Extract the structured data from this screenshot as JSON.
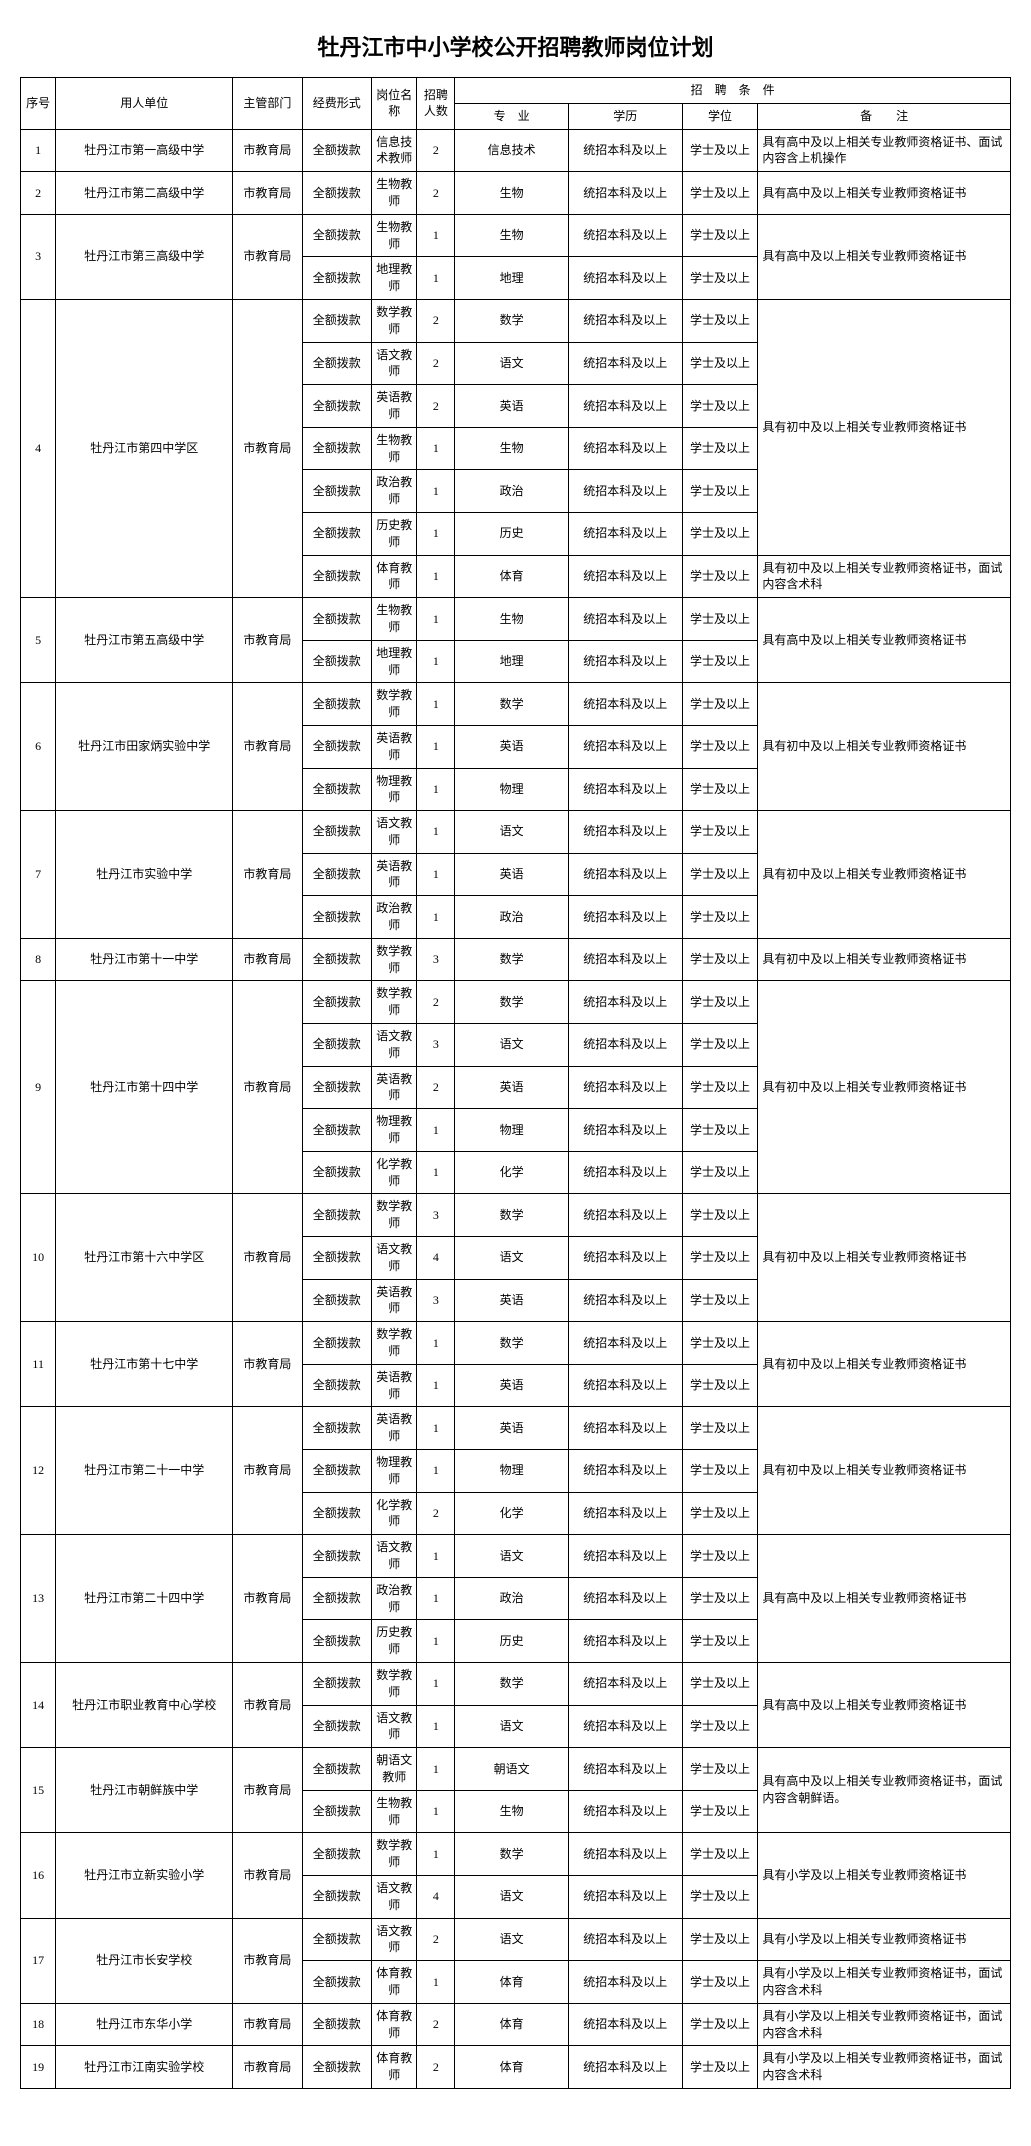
{
  "title": "牡丹江市中小学校公开招聘教师岗位计划",
  "headers": {
    "seq": "序号",
    "unit": "用人单位",
    "dept": "主管部门",
    "fund": "经费形式",
    "pos": "岗位名称",
    "num": "招聘人数",
    "cond": "招　聘　条　件",
    "major": "专　业",
    "edu": "学历",
    "deg": "学位",
    "note": "备　　注"
  },
  "common": {
    "dept": "市教育局",
    "fund": "全额拨款",
    "edu": "统招本科及以上",
    "deg": "学士及以上"
  },
  "notes": {
    "hs": "具有高中及以上相关专业教师资格证书",
    "hs_comp": "具有高中及以上相关专业教师资格证书、面试内容含上机操作",
    "ms": "具有初中及以上相关专业教师资格证书",
    "ms_pe": "具有初中及以上相关专业教师资格证书，面试内容含术科",
    "hs_kor": "具有高中及以上相关专业教师资格证书，面试内容含朝鲜语。",
    "ps": "具有小学及以上相关专业教师资格证书",
    "ps_pe": "具有小学及以上相关专业教师资格证书，面试内容含术科"
  },
  "schools": [
    {
      "seq": "1",
      "unit": "牡丹江市第一高级中学",
      "rows": [
        {
          "pos": "信息技术教师",
          "num": "2",
          "major": "信息技术"
        }
      ],
      "note": "hs_comp"
    },
    {
      "seq": "2",
      "unit": "牡丹江市第二高级中学",
      "rows": [
        {
          "pos": "生物教师",
          "num": "2",
          "major": "生物"
        }
      ],
      "note": "hs"
    },
    {
      "seq": "3",
      "unit": "牡丹江市第三高级中学",
      "rows": [
        {
          "pos": "生物教师",
          "num": "1",
          "major": "生物"
        },
        {
          "pos": "地理教师",
          "num": "1",
          "major": "地理"
        }
      ],
      "note": "hs"
    },
    {
      "seq": "4",
      "unit": "牡丹江市第四中学区",
      "rows": [
        {
          "pos": "数学教师",
          "num": "2",
          "major": "数学"
        },
        {
          "pos": "语文教师",
          "num": "2",
          "major": "语文"
        },
        {
          "pos": "英语教师",
          "num": "2",
          "major": "英语"
        },
        {
          "pos": "生物教师",
          "num": "1",
          "major": "生物"
        },
        {
          "pos": "政治教师",
          "num": "1",
          "major": "政治"
        },
        {
          "pos": "历史教师",
          "num": "1",
          "major": "历史"
        }
      ],
      "note": "ms",
      "extra": [
        {
          "pos": "体育教师",
          "num": "1",
          "major": "体育",
          "note": "ms_pe"
        }
      ]
    },
    {
      "seq": "5",
      "unit": "牡丹江市第五高级中学",
      "rows": [
        {
          "pos": "生物教师",
          "num": "1",
          "major": "生物"
        },
        {
          "pos": "地理教师",
          "num": "1",
          "major": "地理"
        }
      ],
      "note": "hs"
    },
    {
      "seq": "6",
      "unit": "牡丹江市田家炳实验中学",
      "rows": [
        {
          "pos": "数学教师",
          "num": "1",
          "major": "数学"
        },
        {
          "pos": "英语教师",
          "num": "1",
          "major": "英语"
        },
        {
          "pos": "物理教师",
          "num": "1",
          "major": "物理"
        }
      ],
      "note": "ms"
    },
    {
      "seq": "7",
      "unit": "牡丹江市实验中学",
      "rows": [
        {
          "pos": "语文教师",
          "num": "1",
          "major": "语文"
        },
        {
          "pos": "英语教师",
          "num": "1",
          "major": "英语"
        },
        {
          "pos": "政治教师",
          "num": "1",
          "major": "政治"
        }
      ],
      "note": "ms"
    },
    {
      "seq": "8",
      "unit": "牡丹江市第十一中学",
      "rows": [
        {
          "pos": "数学教师",
          "num": "3",
          "major": "数学"
        }
      ],
      "note": "ms"
    },
    {
      "seq": "9",
      "unit": "牡丹江市第十四中学",
      "rows": [
        {
          "pos": "数学教师",
          "num": "2",
          "major": "数学"
        },
        {
          "pos": "语文教师",
          "num": "3",
          "major": "语文"
        },
        {
          "pos": "英语教师",
          "num": "2",
          "major": "英语"
        },
        {
          "pos": "物理教师",
          "num": "1",
          "major": "物理"
        },
        {
          "pos": "化学教师",
          "num": "1",
          "major": "化学"
        }
      ],
      "note": "ms"
    },
    {
      "seq": "10",
      "unit": "牡丹江市第十六中学区",
      "rows": [
        {
          "pos": "数学教师",
          "num": "3",
          "major": "数学"
        },
        {
          "pos": "语文教师",
          "num": "4",
          "major": "语文"
        },
        {
          "pos": "英语教师",
          "num": "3",
          "major": "英语"
        }
      ],
      "note": "ms"
    },
    {
      "seq": "11",
      "unit": "牡丹江市第十七中学",
      "rows": [
        {
          "pos": "数学教师",
          "num": "1",
          "major": "数学"
        },
        {
          "pos": "英语教师",
          "num": "1",
          "major": "英语"
        }
      ],
      "note": "ms"
    },
    {
      "seq": "12",
      "unit": "牡丹江市第二十一中学",
      "rows": [
        {
          "pos": "英语教师",
          "num": "1",
          "major": "英语"
        },
        {
          "pos": "物理教师",
          "num": "1",
          "major": "物理"
        },
        {
          "pos": "化学教师",
          "num": "2",
          "major": "化学"
        }
      ],
      "note": "ms"
    },
    {
      "seq": "13",
      "unit": "牡丹江市第二十四中学",
      "rows": [
        {
          "pos": "语文教师",
          "num": "1",
          "major": "语文"
        },
        {
          "pos": "政治教师",
          "num": "1",
          "major": "政治"
        },
        {
          "pos": "历史教师",
          "num": "1",
          "major": "历史"
        }
      ],
      "note": "hs"
    },
    {
      "seq": "14",
      "unit": "牡丹江市职业教育中心学校",
      "rows": [
        {
          "pos": "数学教师",
          "num": "1",
          "major": "数学"
        },
        {
          "pos": "语文教师",
          "num": "1",
          "major": "语文"
        }
      ],
      "note": "hs"
    },
    {
      "seq": "15",
      "unit": "牡丹江市朝鲜族中学",
      "rows": [
        {
          "pos": "朝语文教师",
          "num": "1",
          "major": "朝语文"
        },
        {
          "pos": "生物教师",
          "num": "1",
          "major": "生物"
        }
      ],
      "note": "hs_kor"
    },
    {
      "seq": "16",
      "unit": "牡丹江市立新实验小学",
      "rows": [
        {
          "pos": "数学教师",
          "num": "1",
          "major": "数学"
        },
        {
          "pos": "语文教师",
          "num": "4",
          "major": "语文"
        }
      ],
      "note": "ps"
    },
    {
      "seq": "17",
      "unit": "牡丹江市长安学校",
      "rows": [
        {
          "pos": "语文教师",
          "num": "2",
          "major": "语文",
          "ownNote": "ps"
        },
        {
          "pos": "体育教师",
          "num": "1",
          "major": "体育",
          "ownNote": "ps_pe"
        }
      ],
      "perRowNote": true
    },
    {
      "seq": "18",
      "unit": "牡丹江市东华小学",
      "rows": [
        {
          "pos": "体育教师",
          "num": "2",
          "major": "体育"
        }
      ],
      "note": "ps_pe"
    },
    {
      "seq": "19",
      "unit": "牡丹江市江南实验学校",
      "rows": [
        {
          "pos": "体育教师",
          "num": "2",
          "major": "体育"
        }
      ],
      "note": "ps_pe"
    }
  ]
}
